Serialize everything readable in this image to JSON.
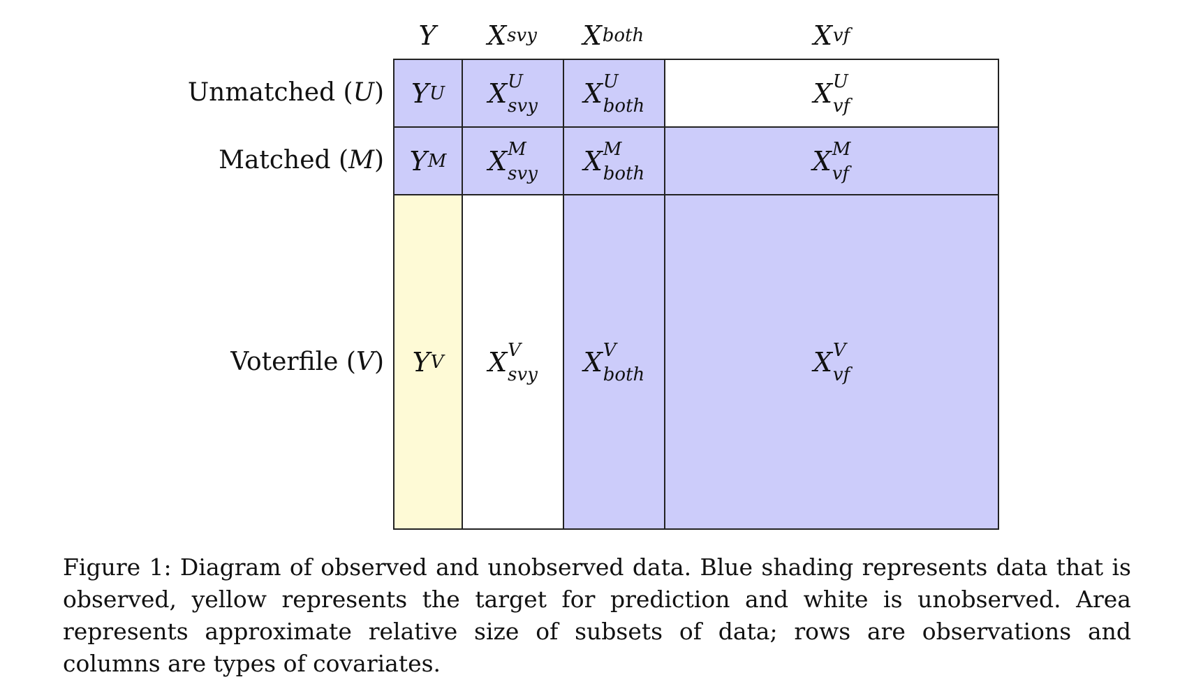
{
  "colors": {
    "observed": "#ccccfa",
    "target": "#fefad6",
    "unobserved": "#ffffff",
    "border": "#222222"
  },
  "columns": [
    {
      "symbol": "X",
      "sub": "",
      "label_main": "Y",
      "label_sub": ""
    },
    {
      "symbol": "X",
      "sub": "svy",
      "label_main": "X",
      "label_sub": "svy"
    },
    {
      "symbol": "X",
      "sub": "both",
      "label_main": "X",
      "label_sub": "both"
    },
    {
      "symbol": "X",
      "sub": "vf",
      "label_main": "X",
      "label_sub": "vf"
    }
  ],
  "rows": [
    {
      "label": "Unmatched (",
      "sym": "U",
      "close": ")"
    },
    {
      "label": "Matched (",
      "sym": "M",
      "close": ")"
    },
    {
      "label": "Voterfile (",
      "sym": "V",
      "close": ")"
    }
  ],
  "cells": [
    [
      {
        "main": "Y",
        "sup": "U",
        "sub": "",
        "fill": "observed"
      },
      {
        "main": "X",
        "sup": "U",
        "sub": "svy",
        "fill": "observed"
      },
      {
        "main": "X",
        "sup": "U",
        "sub": "both",
        "fill": "observed"
      },
      {
        "main": "X",
        "sup": "U",
        "sub": "vf",
        "fill": "unobserved"
      }
    ],
    [
      {
        "main": "Y",
        "sup": "M",
        "sub": "",
        "fill": "observed"
      },
      {
        "main": "X",
        "sup": "M",
        "sub": "svy",
        "fill": "observed"
      },
      {
        "main": "X",
        "sup": "M",
        "sub": "both",
        "fill": "observed"
      },
      {
        "main": "X",
        "sup": "M",
        "sub": "vf",
        "fill": "observed"
      }
    ],
    [
      {
        "main": "Y",
        "sup": "V",
        "sub": "",
        "fill": "target"
      },
      {
        "main": "X",
        "sup": "V",
        "sub": "svy",
        "fill": "unobserved"
      },
      {
        "main": "X",
        "sup": "V",
        "sub": "both",
        "fill": "observed"
      },
      {
        "main": "X",
        "sup": "V",
        "sub": "vf",
        "fill": "observed"
      }
    ]
  ],
  "caption": "Figure 1: Diagram of observed and unobserved data. Blue shading represents data that is observed, yellow represents the target for prediction and white is unobserved. Area represents approximate relative size of subsets of data; rows are observations and columns are types of covariates."
}
